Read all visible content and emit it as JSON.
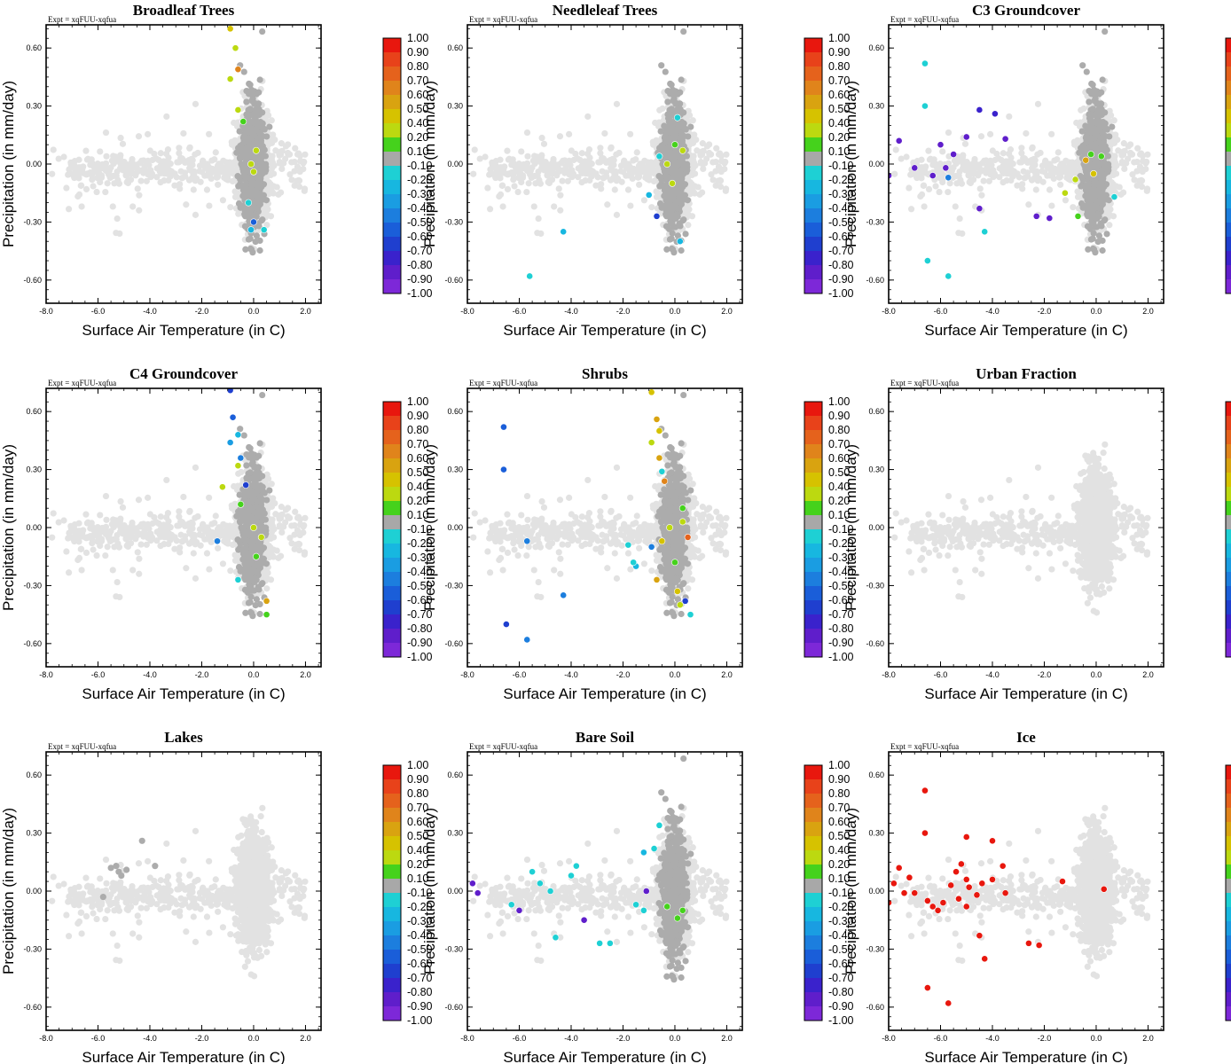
{
  "figure": {
    "experiment_label": "Expt = xqFUU-xqfua",
    "colorbar_labels": [
      "1.00",
      "0.90",
      "0.80",
      "0.70",
      "0.60",
      "0.50",
      "0.40",
      "0.20",
      "0.10",
      "-0.10",
      "-0.20",
      "-0.30",
      "-0.40",
      "-0.50",
      "-0.60",
      "-0.70",
      "-0.80",
      "-0.90",
      "-1.00"
    ],
    "colorbar_colors": [
      "#e8170e",
      "#e8421a",
      "#e5621c",
      "#e0841b",
      "#d9a310",
      "#d6c200",
      "#bcd910",
      "#45d21c",
      "#a8a8a8",
      "#1ed0d4",
      "#17b7e0",
      "#1a9de2",
      "#1c7ede",
      "#1a5ed9",
      "#1f3fcf",
      "#3a22cc",
      "#5f1ecb",
      "#7d28d8"
    ]
  },
  "chart_data": [
    {
      "type": "scatter",
      "title": "Broadleaf Trees",
      "xlabel": "Surface Air Temperature (in C)",
      "ylabel": "Precipitation (in mm/day)",
      "xlim": [
        -8.0,
        2.6
      ],
      "ylim": [
        -0.72,
        0.72
      ],
      "xticks": [
        "-8.0",
        "-6.0",
        "-4.0",
        "-2.0",
        "0.0",
        "2.0"
      ],
      "yticks": [
        "0.60",
        "0.30",
        "0.00",
        "-0.30",
        "-0.60"
      ],
      "background": {
        "light_gray": "all grid cells",
        "dark_gray": "cells with nonzero fraction"
      },
      "highlight": [
        {
          "x": -0.9,
          "y": 0.7,
          "c": 0.45
        },
        {
          "x": -0.7,
          "y": 0.6,
          "c": 0.35
        },
        {
          "x": -0.6,
          "y": 0.49,
          "c": 0.65
        },
        {
          "x": -0.9,
          "y": 0.44,
          "c": 0.2
        },
        {
          "x": -0.6,
          "y": 0.28,
          "c": 0.2
        },
        {
          "x": -0.4,
          "y": 0.22,
          "c": 0.15
        },
        {
          "x": 0.1,
          "y": 0.07,
          "c": 0.35
        },
        {
          "x": -0.1,
          "y": 0.0,
          "c": 0.25
        },
        {
          "x": 0.0,
          "y": -0.04,
          "c": 0.3
        },
        {
          "x": -0.2,
          "y": -0.2,
          "c": -0.2
        },
        {
          "x": 0.0,
          "y": -0.3,
          "c": -0.6
        },
        {
          "x": -0.1,
          "y": -0.34,
          "c": -0.3
        },
        {
          "x": 0.4,
          "y": -0.34,
          "c": -0.2
        }
      ]
    },
    {
      "type": "scatter",
      "title": "Needleleaf Trees",
      "xlabel": "Surface Air Temperature (in C)",
      "ylabel": "Precipitation (in mm/day)",
      "xlim": [
        -8.0,
        2.6
      ],
      "ylim": [
        -0.72,
        0.72
      ],
      "xticks": [
        "-8.0",
        "-6.0",
        "-4.0",
        "-2.0",
        "0.0",
        "2.0"
      ],
      "yticks": [
        "0.60",
        "0.30",
        "0.00",
        "-0.30",
        "-0.60"
      ],
      "background": {
        "light_gray": "all grid cells",
        "dark_gray": "cells with nonzero fraction"
      },
      "highlight": [
        {
          "x": 0.1,
          "y": 0.24,
          "c": -0.2
        },
        {
          "x": -0.6,
          "y": 0.04,
          "c": -0.2
        },
        {
          "x": 0.0,
          "y": 0.1,
          "c": 0.15
        },
        {
          "x": 0.3,
          "y": 0.07,
          "c": 0.2
        },
        {
          "x": -0.3,
          "y": 0.0,
          "c": 0.3
        },
        {
          "x": -0.1,
          "y": -0.1,
          "c": 0.2
        },
        {
          "x": -1.0,
          "y": -0.16,
          "c": -0.3
        },
        {
          "x": -0.7,
          "y": -0.27,
          "c": -0.7
        },
        {
          "x": -4.3,
          "y": -0.35,
          "c": -0.3
        },
        {
          "x": -5.6,
          "y": -0.58,
          "c": -0.2
        },
        {
          "x": 0.2,
          "y": -0.4,
          "c": -0.3
        }
      ]
    },
    {
      "type": "scatter",
      "title": "C3 Groundcover",
      "xlabel": "Surface Air Temperature (in C)",
      "ylabel": "Precipitation (in mm/day)",
      "xlim": [
        -8.0,
        2.6
      ],
      "ylim": [
        -0.72,
        0.72
      ],
      "xticks": [
        "-8.0",
        "-6.0",
        "-4.0",
        "-2.0",
        "0.0",
        "2.0"
      ],
      "yticks": [
        "0.60",
        "0.30",
        "0.00",
        "-0.30",
        "-0.60"
      ],
      "background": {
        "light_gray": "all grid cells",
        "dark_gray": "cells with nonzero fraction"
      },
      "highlight": [
        {
          "x": -6.6,
          "y": 0.52,
          "c": -0.2
        },
        {
          "x": -6.6,
          "y": 0.3,
          "c": -0.2
        },
        {
          "x": -5.0,
          "y": 0.14,
          "c": -0.9
        },
        {
          "x": -4.5,
          "y": 0.28,
          "c": -0.8
        },
        {
          "x": -3.9,
          "y": 0.26,
          "c": -0.8
        },
        {
          "x": -7.6,
          "y": 0.12,
          "c": -0.9
        },
        {
          "x": -6.0,
          "y": 0.1,
          "c": -0.9
        },
        {
          "x": -5.5,
          "y": 0.05,
          "c": -0.9
        },
        {
          "x": -7.0,
          "y": -0.02,
          "c": -0.9
        },
        {
          "x": -6.3,
          "y": -0.06,
          "c": -0.9
        },
        {
          "x": -5.8,
          "y": -0.02,
          "c": -0.9
        },
        {
          "x": -8.0,
          "y": -0.06,
          "c": -0.9
        },
        {
          "x": -4.5,
          "y": -0.23,
          "c": -0.9
        },
        {
          "x": -3.5,
          "y": 0.13,
          "c": -0.9
        },
        {
          "x": -2.3,
          "y": -0.27,
          "c": -0.9
        },
        {
          "x": -1.8,
          "y": -0.28,
          "c": -0.9
        },
        {
          "x": -6.5,
          "y": -0.5,
          "c": -0.2
        },
        {
          "x": -5.7,
          "y": -0.58,
          "c": -0.2
        },
        {
          "x": -4.3,
          "y": -0.35,
          "c": -0.2
        },
        {
          "x": -5.7,
          "y": -0.07,
          "c": -0.5
        },
        {
          "x": 0.7,
          "y": -0.17,
          "c": -0.2
        },
        {
          "x": -0.4,
          "y": 0.02,
          "c": 0.5
        },
        {
          "x": -0.8,
          "y": -0.08,
          "c": 0.3
        },
        {
          "x": -0.2,
          "y": 0.05,
          "c": 0.15
        },
        {
          "x": -1.2,
          "y": -0.15,
          "c": 0.2
        },
        {
          "x": -0.7,
          "y": -0.27,
          "c": 0.15
        },
        {
          "x": -0.1,
          "y": -0.05,
          "c": 0.4
        },
        {
          "x": 0.2,
          "y": 0.04,
          "c": 0.15
        }
      ]
    },
    {
      "type": "scatter",
      "title": "C4 Groundcover",
      "xlabel": "Surface Air Temperature (in C)",
      "ylabel": "Precipitation (in mm/day)",
      "xlim": [
        -8.0,
        2.6
      ],
      "ylim": [
        -0.72,
        0.72
      ],
      "xticks": [
        "-8.0",
        "-6.0",
        "-4.0",
        "-2.0",
        "0.0",
        "2.0"
      ],
      "yticks": [
        "0.60",
        "0.30",
        "0.00",
        "-0.30",
        "-0.60"
      ],
      "background": {
        "light_gray": "all grid cells",
        "dark_gray": "cells with nonzero fraction"
      },
      "highlight": [
        {
          "x": -0.9,
          "y": 0.71,
          "c": -0.7
        },
        {
          "x": -0.8,
          "y": 0.57,
          "c": -0.6
        },
        {
          "x": -0.6,
          "y": 0.48,
          "c": -0.3
        },
        {
          "x": -0.9,
          "y": 0.44,
          "c": -0.4
        },
        {
          "x": -0.5,
          "y": 0.36,
          "c": -0.5
        },
        {
          "x": -0.6,
          "y": 0.32,
          "c": 0.3
        },
        {
          "x": -1.2,
          "y": 0.21,
          "c": 0.3
        },
        {
          "x": -0.3,
          "y": 0.22,
          "c": -0.7
        },
        {
          "x": -0.5,
          "y": 0.12,
          "c": 0.15
        },
        {
          "x": -1.4,
          "y": -0.07,
          "c": -0.5
        },
        {
          "x": 0.0,
          "y": 0.0,
          "c": 0.2
        },
        {
          "x": 0.3,
          "y": -0.05,
          "c": 0.3
        },
        {
          "x": 0.1,
          "y": -0.15,
          "c": 0.15
        },
        {
          "x": 0.5,
          "y": -0.38,
          "c": 0.5
        },
        {
          "x": 0.5,
          "y": -0.45,
          "c": 0.15
        },
        {
          "x": -0.6,
          "y": -0.27,
          "c": -0.2
        }
      ]
    },
    {
      "type": "scatter",
      "title": "Shrubs",
      "xlabel": "Surface Air Temperature (in C)",
      "ylabel": "Precipitation (in mm/day)",
      "xlim": [
        -8.0,
        2.6
      ],
      "ylim": [
        -0.72,
        0.72
      ],
      "xticks": [
        "-8.0",
        "-6.0",
        "-4.0",
        "-2.0",
        "0.0",
        "2.0"
      ],
      "yticks": [
        "0.60",
        "0.30",
        "0.00",
        "-0.30",
        "-0.60"
      ],
      "background": {
        "light_gray": "all grid cells",
        "dark_gray": "cells with nonzero fraction"
      },
      "highlight": [
        {
          "x": -6.6,
          "y": 0.52,
          "c": -0.6
        },
        {
          "x": -6.6,
          "y": 0.3,
          "c": -0.6
        },
        {
          "x": -5.7,
          "y": -0.07,
          "c": -0.5
        },
        {
          "x": -4.3,
          "y": -0.35,
          "c": -0.5
        },
        {
          "x": -6.5,
          "y": -0.5,
          "c": -0.7
        },
        {
          "x": -5.7,
          "y": -0.58,
          "c": -0.5
        },
        {
          "x": -0.9,
          "y": 0.7,
          "c": 0.4
        },
        {
          "x": -0.7,
          "y": 0.56,
          "c": 0.55
        },
        {
          "x": -0.6,
          "y": 0.5,
          "c": 0.4
        },
        {
          "x": -0.9,
          "y": 0.44,
          "c": 0.2
        },
        {
          "x": -0.6,
          "y": 0.36,
          "c": 0.5
        },
        {
          "x": -0.5,
          "y": 0.29,
          "c": -0.2
        },
        {
          "x": -0.4,
          "y": 0.24,
          "c": 0.6
        },
        {
          "x": -1.8,
          "y": -0.09,
          "c": -0.2
        },
        {
          "x": -1.5,
          "y": -0.2,
          "c": -0.3
        },
        {
          "x": -1.6,
          "y": -0.18,
          "c": -0.2
        },
        {
          "x": -0.9,
          "y": -0.1,
          "c": -0.5
        },
        {
          "x": -0.2,
          "y": 0.0,
          "c": 0.2
        },
        {
          "x": 0.3,
          "y": 0.03,
          "c": 0.3
        },
        {
          "x": 0.5,
          "y": -0.05,
          "c": 0.7
        },
        {
          "x": -0.5,
          "y": -0.07,
          "c": 0.4
        },
        {
          "x": 0.0,
          "y": -0.18,
          "c": 0.15
        },
        {
          "x": -0.7,
          "y": -0.27,
          "c": 0.55
        },
        {
          "x": 0.1,
          "y": -0.33,
          "c": 0.4
        },
        {
          "x": 0.2,
          "y": -0.4,
          "c": 0.3
        },
        {
          "x": 0.4,
          "y": -0.38,
          "c": -0.7
        },
        {
          "x": 0.6,
          "y": -0.45,
          "c": -0.2
        },
        {
          "x": 0.3,
          "y": 0.1,
          "c": 0.15
        }
      ]
    },
    {
      "type": "scatter",
      "title": "Urban Fraction",
      "xlabel": "Surface Air Temperature (in C)",
      "ylabel": "Precipitation (in mm/day)",
      "xlim": [
        -8.0,
        2.6
      ],
      "ylim": [
        -0.72,
        0.72
      ],
      "xticks": [
        "-8.0",
        "-6.0",
        "-4.0",
        "-2.0",
        "0.0",
        "2.0"
      ],
      "yticks": [
        "0.60",
        "0.30",
        "0.00",
        "-0.30",
        "-0.60"
      ],
      "background": {
        "light_gray": "all grid cells",
        "dark_gray": "none"
      },
      "highlight": []
    },
    {
      "type": "scatter",
      "title": "Lakes",
      "xlabel": "Surface Air Temperature (in C)",
      "ylabel": "Precipitation (in mm/day)",
      "xlim": [
        -8.0,
        2.6
      ],
      "ylim": [
        -0.72,
        0.72
      ],
      "xticks": [
        "-8.0",
        "-6.0",
        "-4.0",
        "-2.0",
        "0.0",
        "2.0"
      ],
      "yticks": [
        "0.60",
        "0.30",
        "0.00",
        "-0.30",
        "-0.60"
      ],
      "background": {
        "light_gray": "all grid cells",
        "dark_gray": "few cells"
      },
      "highlight": []
    },
    {
      "type": "scatter",
      "title": "Bare Soil",
      "xlabel": "Surface Air Temperature (in C)",
      "ylabel": "Precipitation (in mm/day)",
      "xlim": [
        -8.0,
        2.6
      ],
      "ylim": [
        -0.72,
        0.72
      ],
      "xticks": [
        "-8.0",
        "-6.0",
        "-4.0",
        "-2.0",
        "0.0",
        "2.0"
      ],
      "yticks": [
        "0.60",
        "0.30",
        "0.00",
        "-0.30",
        "-0.60"
      ],
      "background": {
        "light_gray": "all grid cells",
        "dark_gray": "cells with nonzero fraction"
      },
      "highlight": [
        {
          "x": -7.8,
          "y": 0.04,
          "c": -0.9
        },
        {
          "x": -7.6,
          "y": -0.01,
          "c": -0.9
        },
        {
          "x": -6.3,
          "y": -0.07,
          "c": -0.2
        },
        {
          "x": -6.0,
          "y": -0.1,
          "c": -0.9
        },
        {
          "x": -5.5,
          "y": 0.1,
          "c": -0.2
        },
        {
          "x": -5.2,
          "y": 0.04,
          "c": -0.2
        },
        {
          "x": -4.8,
          "y": 0.0,
          "c": -0.2
        },
        {
          "x": -4.0,
          "y": 0.08,
          "c": -0.2
        },
        {
          "x": -3.8,
          "y": 0.13,
          "c": -0.2
        },
        {
          "x": -3.5,
          "y": -0.15,
          "c": -0.9
        },
        {
          "x": -4.6,
          "y": -0.24,
          "c": -0.2
        },
        {
          "x": -2.9,
          "y": -0.27,
          "c": -0.2
        },
        {
          "x": -2.5,
          "y": -0.27,
          "c": -0.2
        },
        {
          "x": -1.5,
          "y": -0.07,
          "c": -0.2
        },
        {
          "x": -1.2,
          "y": 0.2,
          "c": -0.3
        },
        {
          "x": -0.8,
          "y": 0.22,
          "c": -0.2
        },
        {
          "x": -0.6,
          "y": 0.34,
          "c": -0.2
        },
        {
          "x": -1.2,
          "y": -0.1,
          "c": -0.2
        },
        {
          "x": -1.1,
          "y": 0.0,
          "c": -0.9
        },
        {
          "x": -0.3,
          "y": -0.08,
          "c": 0.15
        },
        {
          "x": 0.1,
          "y": -0.14,
          "c": 0.15
        },
        {
          "x": 0.3,
          "y": -0.1,
          "c": 0.15
        }
      ]
    },
    {
      "type": "scatter",
      "title": "Ice",
      "xlabel": "Surface Air Temperature (in C)",
      "ylabel": "Precipitation (in mm/day)",
      "xlim": [
        -8.0,
        2.6
      ],
      "ylim": [
        -0.72,
        0.72
      ],
      "xticks": [
        "-8.0",
        "-6.0",
        "-4.0",
        "-2.0",
        "0.0",
        "2.0"
      ],
      "yticks": [
        "0.60",
        "0.30",
        "0.00",
        "-0.30",
        "-0.60"
      ],
      "background": {
        "light_gray": "all grid cells",
        "dark_gray": "none"
      },
      "highlight": [
        {
          "x": -6.6,
          "y": 0.52,
          "c": 1.0
        },
        {
          "x": -6.6,
          "y": 0.3,
          "c": 1.0
        },
        {
          "x": -5.0,
          "y": 0.28,
          "c": 1.0
        },
        {
          "x": -4.0,
          "y": 0.26,
          "c": 1.0
        },
        {
          "x": -7.6,
          "y": 0.12,
          "c": 1.0
        },
        {
          "x": -7.2,
          "y": 0.07,
          "c": 1.0
        },
        {
          "x": -7.8,
          "y": 0.04,
          "c": 1.0
        },
        {
          "x": -7.4,
          "y": -0.01,
          "c": 1.0
        },
        {
          "x": -7.0,
          "y": -0.01,
          "c": 1.0
        },
        {
          "x": -8.0,
          "y": -0.06,
          "c": 1.0
        },
        {
          "x": -6.5,
          "y": -0.05,
          "c": 1.0
        },
        {
          "x": -6.3,
          "y": -0.08,
          "c": 1.0
        },
        {
          "x": -6.1,
          "y": -0.1,
          "c": 1.0
        },
        {
          "x": -5.9,
          "y": -0.06,
          "c": 1.0
        },
        {
          "x": -5.6,
          "y": 0.03,
          "c": 1.0
        },
        {
          "x": -5.4,
          "y": 0.1,
          "c": 1.0
        },
        {
          "x": -5.2,
          "y": 0.14,
          "c": 1.0
        },
        {
          "x": -5.0,
          "y": 0.06,
          "c": 1.0
        },
        {
          "x": -4.9,
          "y": 0.02,
          "c": 1.0
        },
        {
          "x": -4.6,
          "y": -0.02,
          "c": 1.0
        },
        {
          "x": -4.4,
          "y": 0.04,
          "c": 1.0
        },
        {
          "x": -4.0,
          "y": 0.06,
          "c": 1.0
        },
        {
          "x": -3.6,
          "y": 0.13,
          "c": 1.0
        },
        {
          "x": -3.5,
          "y": -0.01,
          "c": 1.0
        },
        {
          "x": -4.5,
          "y": -0.23,
          "c": 1.0
        },
        {
          "x": -4.3,
          "y": -0.35,
          "c": 1.0
        },
        {
          "x": -2.6,
          "y": -0.27,
          "c": 1.0
        },
        {
          "x": -2.2,
          "y": -0.28,
          "c": 1.0
        },
        {
          "x": -6.5,
          "y": -0.5,
          "c": 1.0
        },
        {
          "x": -5.7,
          "y": -0.58,
          "c": 1.0
        },
        {
          "x": -1.3,
          "y": 0.05,
          "c": 1.0
        },
        {
          "x": 0.3,
          "y": 0.01,
          "c": 1.0
        },
        {
          "x": -5.3,
          "y": -0.04,
          "c": 1.0
        },
        {
          "x": -5.0,
          "y": -0.08,
          "c": 1.0
        }
      ]
    }
  ]
}
